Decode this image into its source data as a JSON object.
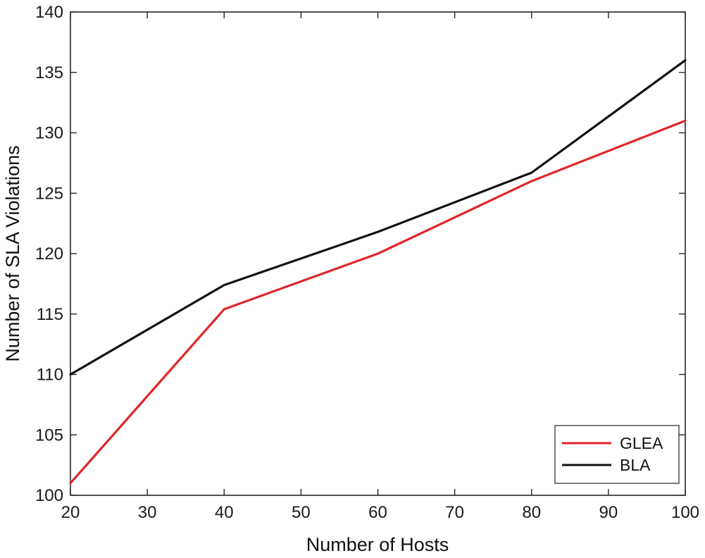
{
  "chart_data": {
    "type": "line",
    "xlabel": "Number of Hosts",
    "ylabel": "Number of SLA Violations",
    "xlim": [
      20,
      100
    ],
    "ylim": [
      100,
      140
    ],
    "xticks": [
      20,
      30,
      40,
      50,
      60,
      70,
      80,
      90,
      100
    ],
    "yticks": [
      100,
      105,
      110,
      115,
      120,
      125,
      130,
      135,
      140
    ],
    "grid": false,
    "legend_position": "bottom-right",
    "series": [
      {
        "name": "GLEA",
        "color": "#e0262a",
        "x": [
          20,
          40,
          60,
          80,
          100
        ],
        "y": [
          101,
          115.4,
          120,
          126,
          131
        ]
      },
      {
        "name": "BLA",
        "color": "#111111",
        "x": [
          20,
          40,
          60,
          80,
          100
        ],
        "y": [
          110,
          117.4,
          121.8,
          126.7,
          136
        ]
      }
    ]
  }
}
